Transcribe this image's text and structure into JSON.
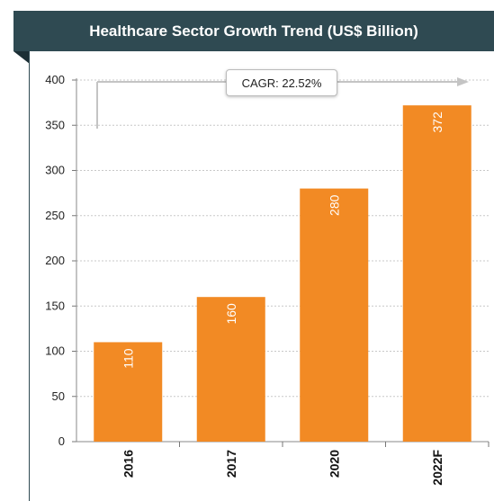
{
  "chart_data": {
    "type": "bar",
    "title": "Healthcare Sector Growth Trend (US$ Billion)",
    "categories": [
      "2016",
      "2017",
      "2020",
      "2022F"
    ],
    "values": [
      110,
      160,
      280,
      372
    ],
    "value_labels": [
      "110",
      "160",
      "280",
      "372"
    ],
    "ylim": [
      0,
      400
    ],
    "yticks": [
      "0",
      "50",
      "100",
      "150",
      "200",
      "250",
      "300",
      "350",
      "400"
    ],
    "grid": true,
    "annotation": "CAGR: 22.52%",
    "colors": {
      "bar": "#f28a24",
      "header": "#2f4a52",
      "grid": "#c8c8c8",
      "arrow": "#c4c4c4"
    }
  }
}
